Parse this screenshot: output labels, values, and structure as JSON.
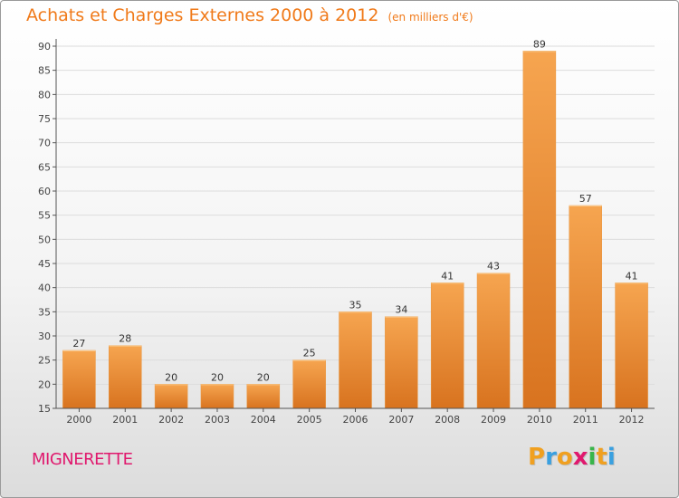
{
  "chart_data": {
    "type": "bar",
    "title": "Achats et Charges Externes 2000 à 2012",
    "subtitle": "(en milliers d'€)",
    "categories": [
      "2000",
      "2001",
      "2002",
      "2003",
      "2004",
      "2005",
      "2006",
      "2007",
      "2008",
      "2009",
      "2010",
      "2011",
      "2012"
    ],
    "values": [
      27,
      28,
      20,
      20,
      20,
      25,
      35,
      34,
      41,
      43,
      89,
      57,
      41
    ],
    "ylim": [
      15,
      90
    ],
    "yticks": [
      15,
      20,
      25,
      30,
      35,
      40,
      45,
      50,
      55,
      60,
      65,
      70,
      75,
      80,
      85,
      90
    ],
    "grid": true,
    "bar_color_top": "#f6a550",
    "bar_color_bottom": "#d8731f"
  },
  "footer": {
    "commune": "MIGNERETTE",
    "logo_letters": [
      "P",
      "r",
      "o",
      "x",
      "i",
      "t",
      "i"
    ],
    "logo_colors": [
      "#f0a020",
      "#3aa0e0",
      "#f0a020",
      "#e0196e",
      "#39b54a",
      "#f0a020",
      "#3aa0e0"
    ]
  },
  "colors": {
    "title": "#f07a1a",
    "commune": "#e0196e",
    "grid": "#dcdcdc"
  }
}
